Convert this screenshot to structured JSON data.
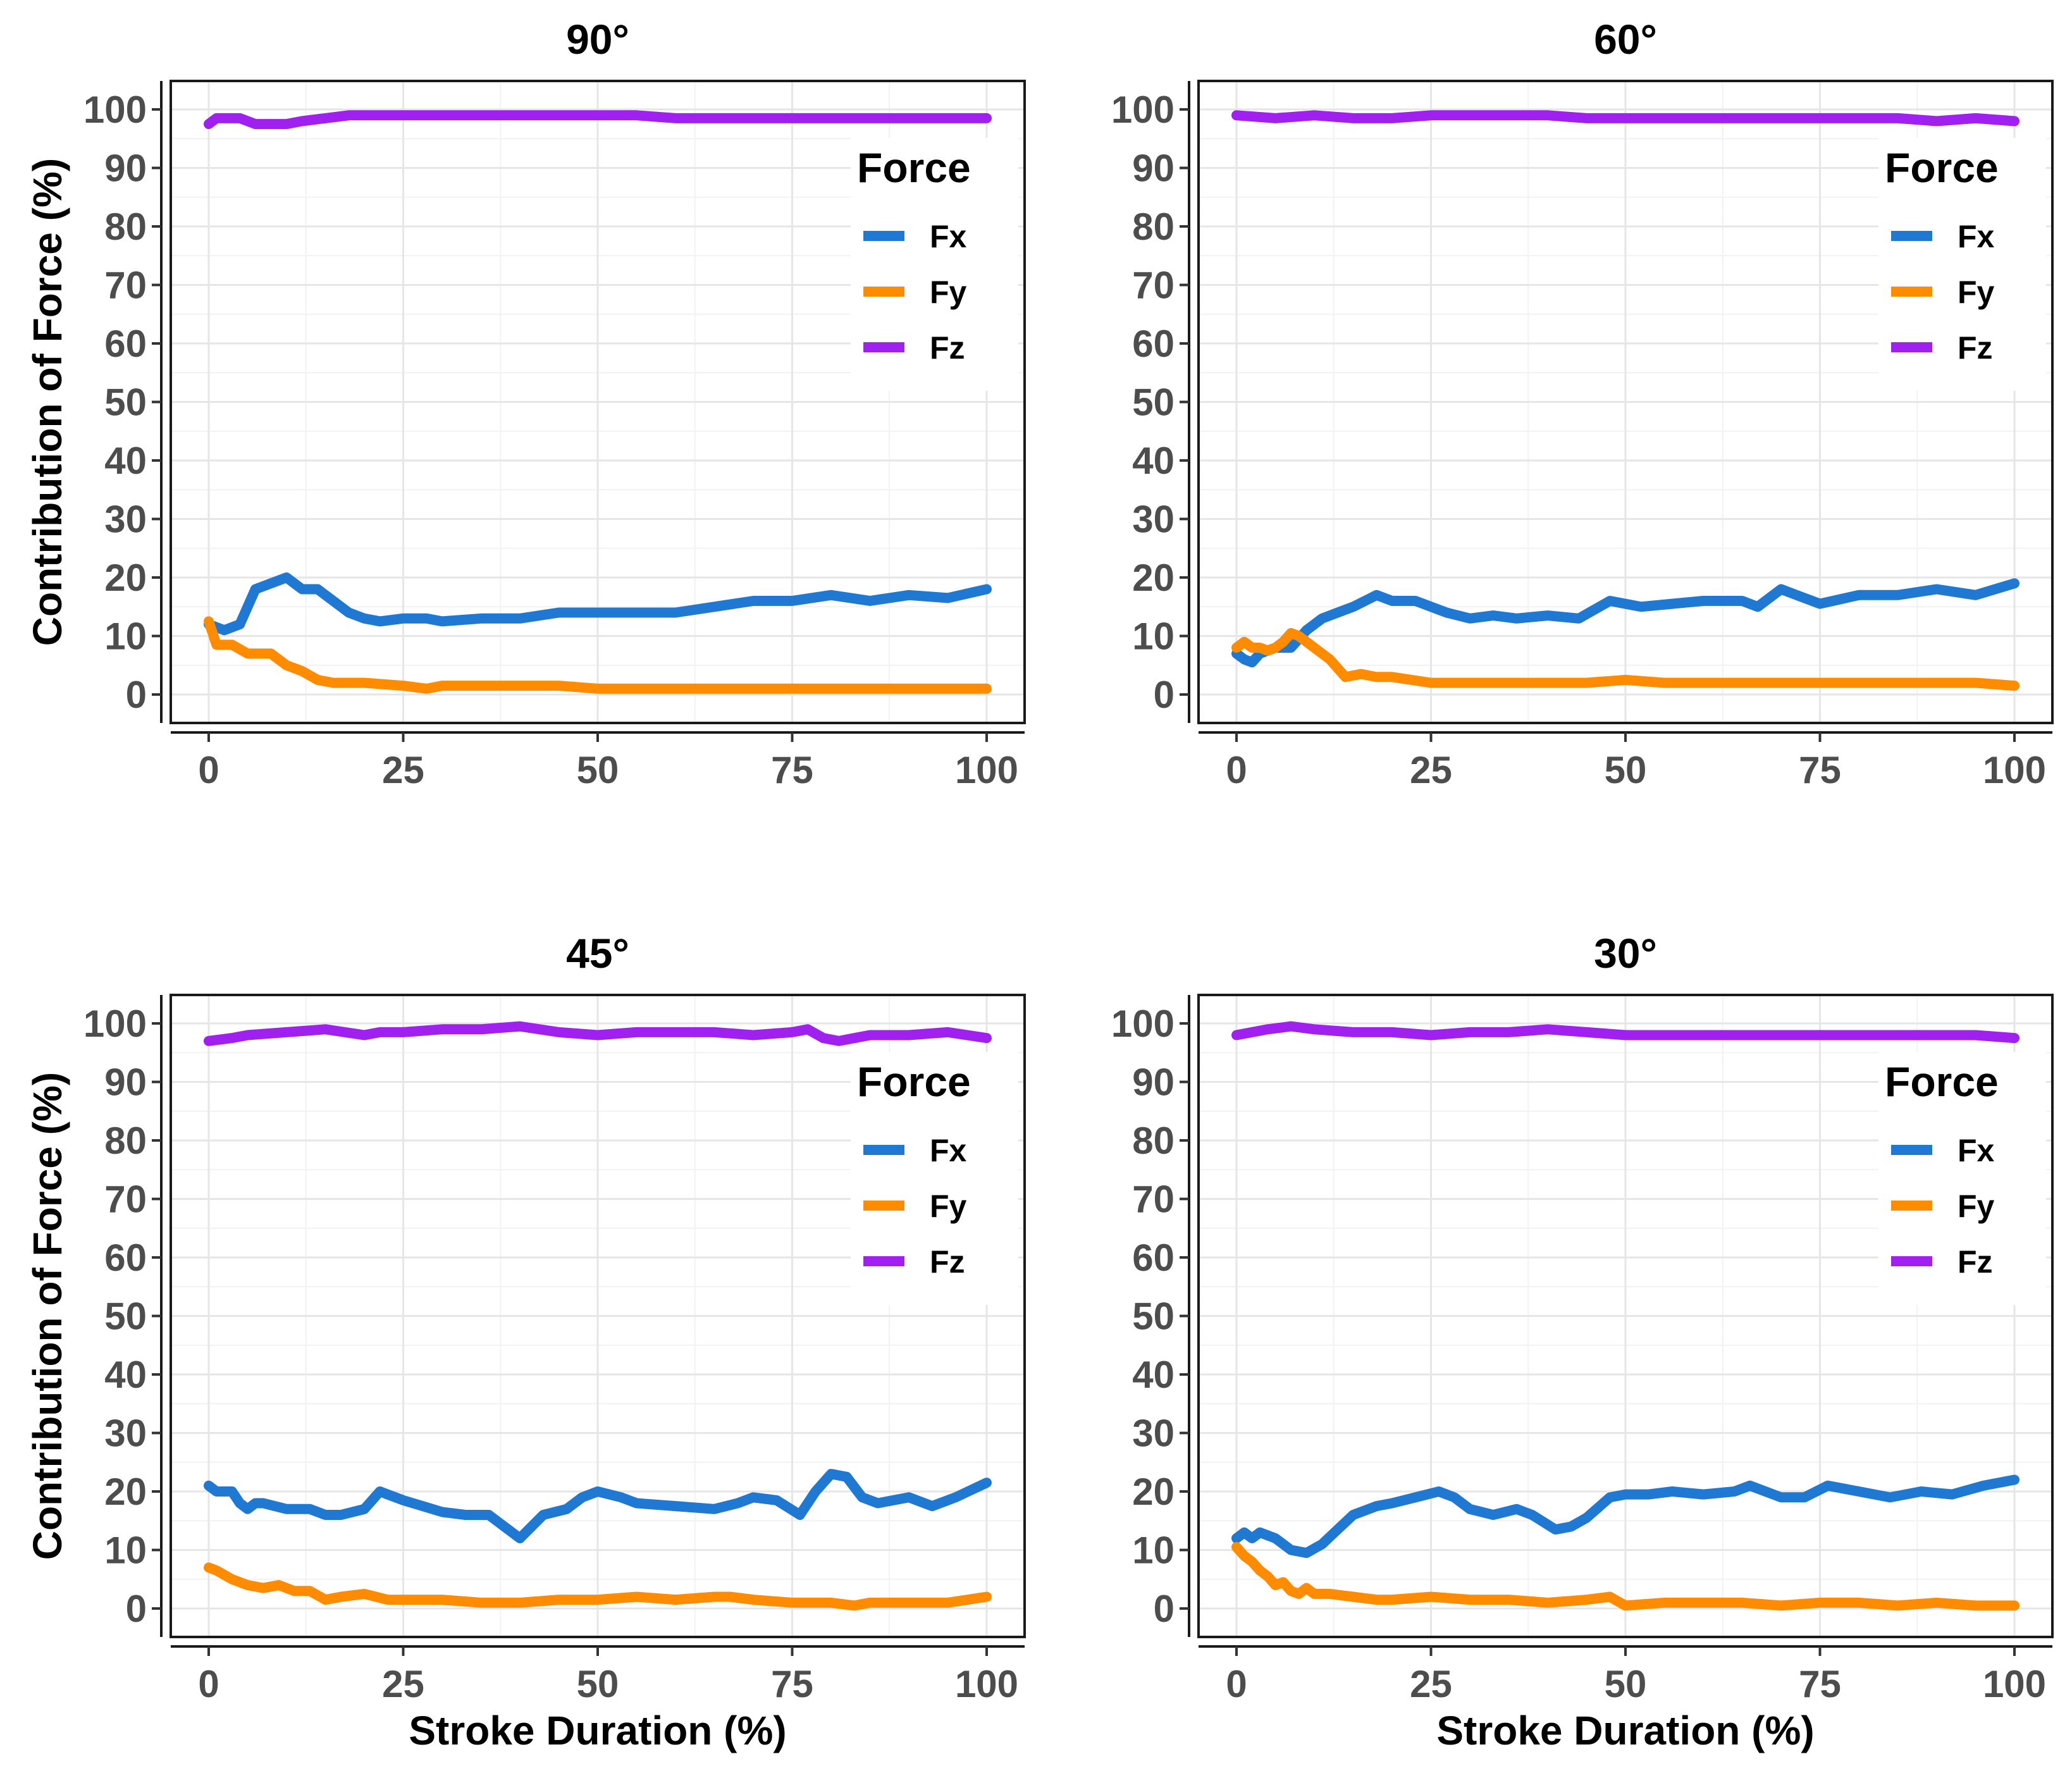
{
  "figure": {
    "y_axis_label": "Contribution of Force (%)",
    "x_axis_label": "Stroke Duration (%)",
    "colors": {
      "Fx": "#1f78d1",
      "Fy": "#ff8c00",
      "Fz": "#a020f0"
    }
  },
  "chart_data": [
    {
      "type": "line",
      "title": "90°",
      "xlabel": "",
      "ylabel": "Contribution of Force (%)",
      "xlim": [
        0,
        100
      ],
      "ylim": [
        0,
        100
      ],
      "xticks": [
        "0",
        "25",
        "50",
        "75",
        "100"
      ],
      "yticks": [
        "0",
        "10",
        "20",
        "30",
        "40",
        "50",
        "60",
        "70",
        "80",
        "90",
        "100"
      ],
      "legend": {
        "title": "Force",
        "entries": [
          "Fx",
          "Fy",
          "Fz"
        ],
        "position": "right"
      },
      "series": [
        {
          "name": "Fx",
          "x": [
            0,
            2,
            4,
            6,
            8,
            10,
            12,
            14,
            16,
            18,
            20,
            22,
            25,
            28,
            30,
            35,
            40,
            45,
            50,
            55,
            60,
            65,
            70,
            75,
            80,
            85,
            90,
            95,
            100
          ],
          "values": [
            12,
            11,
            12,
            18,
            19,
            20,
            18,
            18,
            16,
            14,
            13,
            12.5,
            13,
            13,
            12.5,
            13,
            13,
            14,
            14,
            14,
            14,
            15,
            16,
            16,
            17,
            16,
            17,
            16.5,
            18
          ]
        },
        {
          "name": "Fy",
          "x": [
            0,
            1,
            3,
            5,
            7,
            8,
            10,
            12,
            14,
            16,
            18,
            20,
            25,
            28,
            30,
            35,
            40,
            45,
            50,
            55,
            60,
            65,
            70,
            75,
            80,
            85,
            90,
            95,
            100
          ],
          "values": [
            12.5,
            8.5,
            8.5,
            7,
            7,
            7,
            5,
            4,
            2.5,
            2,
            2,
            2,
            1.5,
            1,
            1.5,
            1.5,
            1.5,
            1.5,
            1,
            1,
            1,
            1,
            1,
            1,
            1,
            1,
            1,
            1,
            1
          ]
        },
        {
          "name": "Fz",
          "x": [
            0,
            1,
            4,
            6,
            8,
            10,
            12,
            15,
            18,
            20,
            25,
            30,
            35,
            40,
            45,
            50,
            55,
            60,
            65,
            70,
            75,
            80,
            85,
            90,
            95,
            100
          ],
          "values": [
            97.5,
            98.5,
            98.5,
            97.5,
            97.5,
            97.5,
            98,
            98.5,
            99,
            99,
            99,
            99,
            99,
            99,
            99,
            99,
            99,
            98.5,
            98.5,
            98.5,
            98.5,
            98.5,
            98.5,
            98.5,
            98.5,
            98.5
          ]
        }
      ]
    },
    {
      "type": "line",
      "title": "60°",
      "xlabel": "",
      "ylabel": "",
      "xlim": [
        0,
        100
      ],
      "ylim": [
        0,
        100
      ],
      "xticks": [
        "0",
        "25",
        "50",
        "75",
        "100"
      ],
      "yticks": [
        "0",
        "10",
        "20",
        "30",
        "40",
        "50",
        "60",
        "70",
        "80",
        "90",
        "100"
      ],
      "legend": {
        "title": "Force",
        "entries": [
          "Fx",
          "Fy",
          "Fz"
        ],
        "position": "right"
      },
      "series": [
        {
          "name": "Fx",
          "x": [
            0,
            1,
            2,
            3,
            5,
            7,
            9,
            11,
            13,
            15,
            18,
            20,
            23,
            27,
            30,
            33,
            36,
            40,
            44,
            48,
            52,
            56,
            60,
            63,
            65,
            67,
            70,
            72,
            75,
            80,
            85,
            90,
            95,
            100
          ],
          "values": [
            7,
            6,
            5.5,
            7,
            8,
            8,
            11,
            13,
            14,
            15,
            17,
            16,
            16,
            14,
            13,
            13.5,
            13,
            13.5,
            13,
            16,
            15,
            15.5,
            16,
            16,
            16,
            15,
            18,
            17,
            15.5,
            17,
            17,
            18,
            17,
            19
          ]
        },
        {
          "name": "Fy",
          "x": [
            0,
            1,
            2,
            3,
            4,
            5,
            6,
            7,
            8,
            10,
            12,
            14,
            16,
            18,
            20,
            25,
            28,
            30,
            35,
            40,
            45,
            50,
            55,
            60,
            65,
            70,
            75,
            80,
            85,
            90,
            95,
            100
          ],
          "values": [
            8,
            9,
            8,
            8,
            7.5,
            8,
            9,
            10.5,
            10,
            8,
            6,
            3,
            3.5,
            3,
            3,
            2,
            2,
            2,
            2,
            2,
            2,
            2.5,
            2,
            2,
            2,
            2,
            2,
            2,
            2,
            2,
            2,
            1.5
          ]
        },
        {
          "name": "Fz",
          "x": [
            0,
            5,
            10,
            15,
            20,
            25,
            30,
            35,
            40,
            45,
            50,
            55,
            60,
            65,
            70,
            75,
            80,
            85,
            90,
            95,
            100
          ],
          "values": [
            99,
            98.5,
            99,
            98.5,
            98.5,
            99,
            99,
            99,
            99,
            98.5,
            98.5,
            98.5,
            98.5,
            98.5,
            98.5,
            98.5,
            98.5,
            98.5,
            98,
            98.5,
            98
          ]
        }
      ]
    },
    {
      "type": "line",
      "title": "45°",
      "xlabel": "Stroke Duration (%)",
      "ylabel": "Contribution of Force (%)",
      "xlim": [
        0,
        100
      ],
      "ylim": [
        0,
        100
      ],
      "xticks": [
        "0",
        "25",
        "50",
        "75",
        "100"
      ],
      "yticks": [
        "0",
        "10",
        "20",
        "30",
        "40",
        "50",
        "60",
        "70",
        "80",
        "90",
        "100"
      ],
      "legend": {
        "title": "Force",
        "entries": [
          "Fx",
          "Fy",
          "Fz"
        ],
        "position": "right"
      },
      "series": [
        {
          "name": "Fx",
          "x": [
            0,
            1,
            3,
            4,
            5,
            6,
            7,
            10,
            13,
            15,
            17,
            20,
            22,
            25,
            30,
            33,
            36,
            40,
            43,
            46,
            48,
            50,
            53,
            55,
            60,
            65,
            68,
            70,
            73,
            76,
            78,
            80,
            82,
            84,
            86,
            90,
            93,
            96,
            100
          ],
          "values": [
            21,
            20,
            20,
            18,
            17,
            18,
            18,
            17,
            17,
            16,
            16,
            17,
            20,
            18.5,
            16.5,
            16,
            16,
            12,
            16,
            17,
            19,
            20,
            19,
            18,
            17.5,
            17,
            18,
            19,
            18.5,
            16,
            20,
            23,
            22.5,
            19,
            18,
            19,
            17.5,
            19,
            21.5
          ]
        },
        {
          "name": "Fy",
          "x": [
            0,
            1,
            3,
            5,
            7,
            9,
            11,
            13,
            15,
            17,
            20,
            23,
            25,
            30,
            35,
            40,
            45,
            50,
            55,
            60,
            65,
            67,
            70,
            75,
            80,
            83,
            85,
            90,
            95,
            100
          ],
          "values": [
            7,
            6.5,
            5,
            4,
            3.5,
            4,
            3,
            3,
            1.5,
            2,
            2.5,
            1.5,
            1.5,
            1.5,
            1,
            1,
            1.5,
            1.5,
            2,
            1.5,
            2,
            2,
            1.5,
            1,
            1,
            0.5,
            1,
            1,
            1,
            2
          ]
        },
        {
          "name": "Fz",
          "x": [
            0,
            3,
            5,
            10,
            15,
            20,
            22,
            25,
            30,
            35,
            40,
            45,
            50,
            55,
            60,
            65,
            70,
            75,
            77,
            79,
            81,
            83,
            85,
            90,
            95,
            100
          ],
          "values": [
            97,
            97.5,
            98,
            98.5,
            99,
            98,
            98.5,
            98.5,
            99,
            99,
            99.5,
            98.5,
            98,
            98.5,
            98.5,
            98.5,
            98,
            98.5,
            99,
            97.5,
            97,
            97.5,
            98,
            98,
            98.5,
            97.5
          ]
        }
      ]
    },
    {
      "type": "line",
      "title": "30°",
      "xlabel": "Stroke Duration (%)",
      "ylabel": "",
      "xlim": [
        0,
        100
      ],
      "ylim": [
        0,
        100
      ],
      "xticks": [
        "0",
        "25",
        "50",
        "75",
        "100"
      ],
      "yticks": [
        "0",
        "10",
        "20",
        "30",
        "40",
        "50",
        "60",
        "70",
        "80",
        "90",
        "100"
      ],
      "legend": {
        "title": "Force",
        "entries": [
          "Fx",
          "Fy",
          "Fz"
        ],
        "position": "right"
      },
      "series": [
        {
          "name": "Fx",
          "x": [
            0,
            1,
            2,
            3,
            5,
            7,
            9,
            11,
            13,
            15,
            18,
            20,
            23,
            26,
            28,
            30,
            33,
            36,
            38,
            41,
            43,
            45,
            48,
            50,
            53,
            56,
            60,
            64,
            66,
            68,
            70,
            73,
            76,
            80,
            84,
            88,
            92,
            96,
            100
          ],
          "values": [
            12,
            13,
            12,
            13,
            12,
            10,
            9.5,
            11,
            13.5,
            16,
            17.5,
            18,
            19,
            20,
            19,
            17,
            16,
            17,
            16,
            13.5,
            14,
            15.5,
            19,
            19.5,
            19.5,
            20,
            19.5,
            20,
            21,
            20,
            19,
            19,
            21,
            20,
            19,
            20,
            19.5,
            21,
            22
          ]
        },
        {
          "name": "Fy",
          "x": [
            0,
            1,
            2,
            3,
            4,
            5,
            6,
            7,
            8,
            9,
            10,
            12,
            15,
            18,
            20,
            25,
            30,
            35,
            40,
            45,
            48,
            50,
            55,
            60,
            65,
            70,
            75,
            80,
            85,
            90,
            95,
            100
          ],
          "values": [
            10.5,
            9,
            8,
            6.5,
            5.5,
            4,
            4.5,
            3,
            2.5,
            3.5,
            2.5,
            2.5,
            2,
            1.5,
            1.5,
            2,
            1.5,
            1.5,
            1,
            1.5,
            2,
            0.5,
            1,
            1,
            1,
            0.5,
            1,
            1,
            0.5,
            1,
            0.5,
            0.5
          ]
        },
        {
          "name": "Fz",
          "x": [
            0,
            2,
            4,
            7,
            10,
            15,
            20,
            25,
            30,
            35,
            40,
            45,
            50,
            55,
            60,
            65,
            70,
            75,
            80,
            85,
            90,
            95,
            100
          ],
          "values": [
            98,
            98.5,
            99,
            99.5,
            99,
            98.5,
            98.5,
            98,
            98.5,
            98.5,
            99,
            98.5,
            98,
            98,
            98,
            98,
            98,
            98,
            98,
            98,
            98,
            98,
            97.5
          ]
        }
      ]
    }
  ]
}
